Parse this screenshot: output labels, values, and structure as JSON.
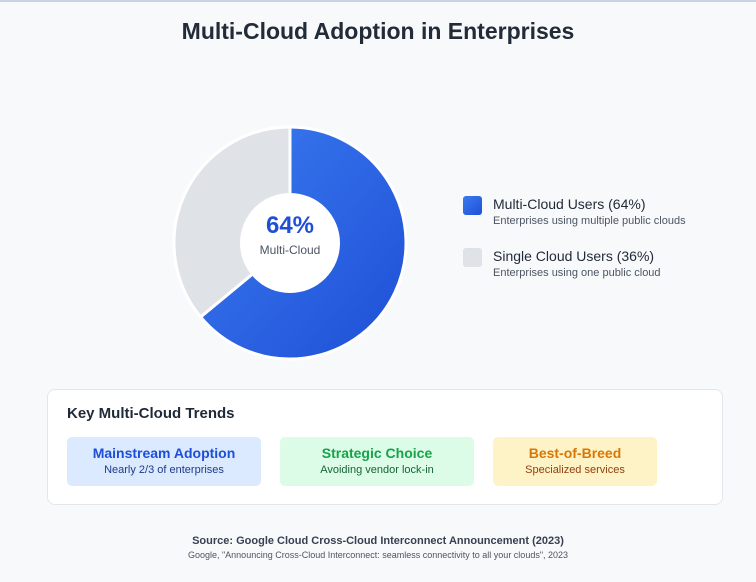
{
  "chart_data": {
    "type": "pie",
    "title": "Multi-Cloud Adoption in Enterprises",
    "center_value": "64%",
    "center_label": "Multi-Cloud",
    "slices": [
      {
        "label": "Multi-Cloud Users (64%)",
        "description": "Enterprises using multiple public clouds",
        "value": 64,
        "color": "#2f66e8"
      },
      {
        "label": "Single Cloud Users (36%)",
        "description": "Enterprises using one public cloud",
        "value": 36,
        "color": "#dfe2e7"
      }
    ],
    "legend_position": "right"
  },
  "trends": {
    "title": "Key Multi-Cloud Trends",
    "cards": [
      {
        "heading": "Mainstream Adoption",
        "sub": "Nearly 2/3 of enterprises"
      },
      {
        "heading": "Strategic Choice",
        "sub": "Avoiding vendor lock-in"
      },
      {
        "heading": "Best-of-Breed",
        "sub": "Specialized services"
      }
    ]
  },
  "footer": {
    "source": "Source: Google Cloud Cross-Cloud Interconnect Announcement (2023)",
    "citation": "Google, \"Announcing Cross-Cloud Interconnect: seamless connectivity to all your clouds\", 2023"
  }
}
